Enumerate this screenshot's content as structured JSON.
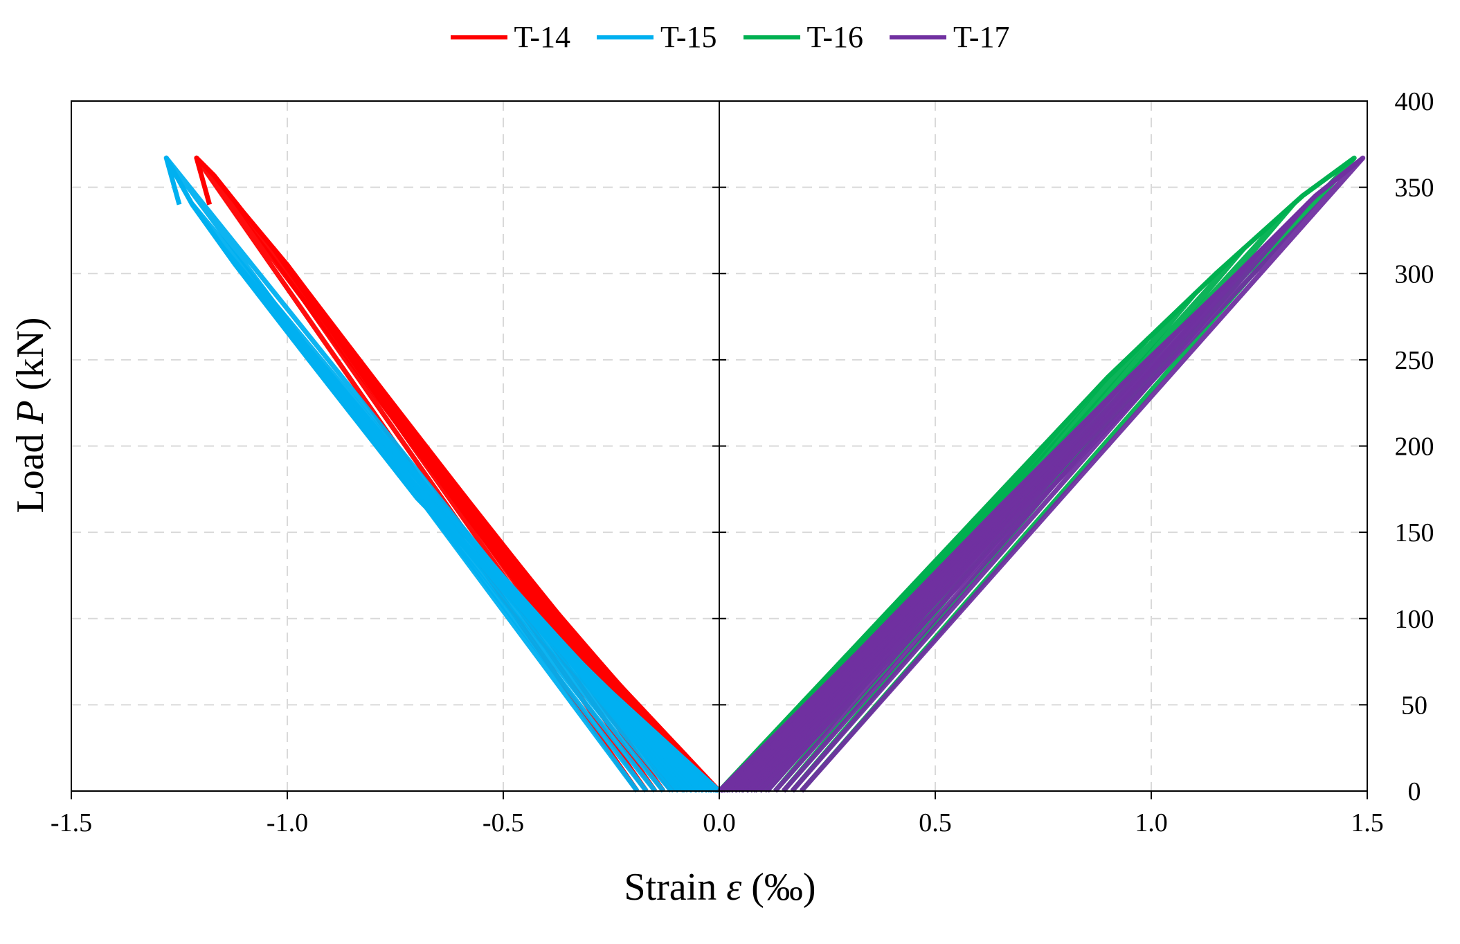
{
  "chart_data": {
    "type": "line",
    "title": "",
    "xlabel": "Strain ε (‰)",
    "ylabel": "Load P (kN)",
    "xlabel_parts": [
      "Strain ",
      "ε",
      " (‰)"
    ],
    "ylabel_parts": [
      "Load ",
      "P",
      " (kN)"
    ],
    "xlim": [
      -1.5,
      1.5
    ],
    "ylim": [
      0,
      400
    ],
    "x_ticks": [
      -1.5,
      -1.0,
      -0.5,
      0.0,
      0.5,
      1.0,
      1.5
    ],
    "x_tick_labels": [
      "-1.5",
      "-1.0",
      "-0.5",
      "0.0",
      "0.5",
      "1.0",
      "1.5"
    ],
    "y_ticks": [
      0,
      50,
      100,
      150,
      200,
      250,
      300,
      350,
      400
    ],
    "y_tick_labels": [
      "0",
      "50",
      "100",
      "150",
      "200",
      "250",
      "300",
      "350",
      "400"
    ],
    "y_axis_side": "right",
    "grid": true,
    "legend_position": "top-center",
    "series": [
      {
        "name": "T-14",
        "color": "#ff0000",
        "x": [
          0,
          -0.3,
          -0.6,
          -0.85,
          -1.0,
          -1.1,
          -1.17,
          -1.21,
          -1.18
        ],
        "y": [
          0,
          80,
          170,
          255,
          305,
          335,
          357,
          367,
          340
        ]
      },
      {
        "name": "T-15",
        "color": "#00b0f0",
        "x": [
          0,
          -0.35,
          -0.7,
          -0.95,
          -1.12,
          -1.22,
          -1.28,
          -1.25
        ],
        "y": [
          0,
          80,
          170,
          250,
          305,
          340,
          367,
          340
        ]
      },
      {
        "name": "T-16",
        "color": "#00b050",
        "x": [
          0,
          0.3,
          0.6,
          0.9,
          1.15,
          1.35,
          1.47
        ],
        "y": [
          0,
          80,
          160,
          240,
          300,
          345,
          367
        ]
      },
      {
        "name": "T-17",
        "color": "#7030a0",
        "x": [
          0,
          0.32,
          0.65,
          0.95,
          1.2,
          1.38,
          1.49
        ],
        "y": [
          0,
          80,
          165,
          240,
          300,
          345,
          367
        ]
      }
    ]
  }
}
